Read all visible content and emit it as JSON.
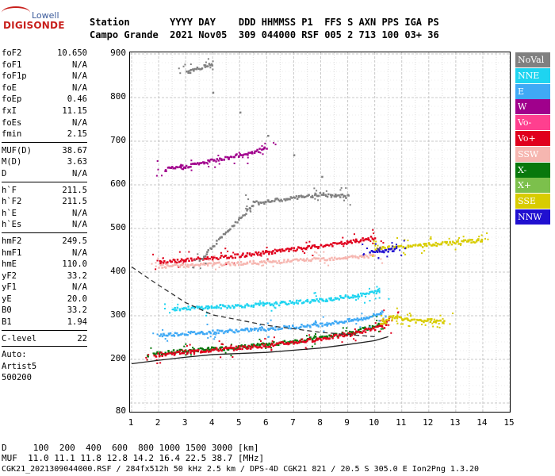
{
  "logo": {
    "top": "Lowell",
    "bottom": "DIGISONDE"
  },
  "header": {
    "line1": "Station       YYYY DAY    DDD HHMMSS P1  FFS S AXN PPS IGA PS",
    "line2": "Campo Grande  2021 Nov05  309 044000 RSF 005 2 713 100 03+ 36"
  },
  "params": {
    "group1": [
      {
        "name": "foF2",
        "value": "10.650"
      },
      {
        "name": "foF1",
        "value": "N/A"
      },
      {
        "name": "foF1p",
        "value": "N/A"
      },
      {
        "name": "foE",
        "value": "N/A"
      },
      {
        "name": "foEp",
        "value": "0.46"
      },
      {
        "name": "fxI",
        "value": "11.15"
      },
      {
        "name": "foEs",
        "value": "N/A"
      },
      {
        "name": "fmin",
        "value": "2.15"
      }
    ],
    "group2": [
      {
        "name": "MUF(D)",
        "value": "38.67"
      },
      {
        "name": "M(D)",
        "value": "3.63"
      },
      {
        "name": "D",
        "value": "N/A"
      }
    ],
    "group3": [
      {
        "name": "h`F",
        "value": "211.5"
      },
      {
        "name": "h`F2",
        "value": "211.5"
      },
      {
        "name": "h`E",
        "value": "N/A"
      },
      {
        "name": "h`Es",
        "value": "N/A"
      }
    ],
    "group4": [
      {
        "name": "hmF2",
        "value": "249.5"
      },
      {
        "name": "hmF1",
        "value": "N/A"
      },
      {
        "name": "hmE",
        "value": "110.0"
      },
      {
        "name": "yF2",
        "value": "33.2"
      },
      {
        "name": "yF1",
        "value": "N/A"
      },
      {
        "name": "yE",
        "value": "20.0"
      },
      {
        "name": "B0",
        "value": "33.2"
      },
      {
        "name": "B1",
        "value": "1.94"
      }
    ],
    "clevel": {
      "name": "C-level",
      "value": "22"
    },
    "auto": {
      "line1": "Auto:",
      "line2": "Artist5",
      "line3": "500200"
    }
  },
  "legend": [
    {
      "label": "NoVal",
      "bg": "#808080",
      "fg": "#ffffff"
    },
    {
      "label": "NNE",
      "bg": "#1ed4f0",
      "fg": "#ffffff"
    },
    {
      "label": "E",
      "bg": "#3fa9f5",
      "fg": "#ffffff"
    },
    {
      "label": "W",
      "bg": "#a0008c",
      "fg": "#ffffff"
    },
    {
      "label": "Vo-",
      "bg": "#ff3f8f",
      "fg": "#ffffff"
    },
    {
      "label": "Vo+",
      "bg": "#e0001c",
      "fg": "#ffffff"
    },
    {
      "label": "SSW",
      "bg": "#f6b6b0",
      "fg": "#ffffff"
    },
    {
      "label": "X-",
      "bg": "#08780c",
      "fg": "#ffffff"
    },
    {
      "label": "X+",
      "bg": "#7cc04c",
      "fg": "#ffffff"
    },
    {
      "label": "SSE",
      "bg": "#d8cc00",
      "fg": "#ffffff"
    },
    {
      "label": "NNW",
      "bg": "#2010d0",
      "fg": "#ffffff"
    }
  ],
  "chart_data": {
    "type": "scatter",
    "xlim": [
      1,
      15
    ],
    "ylim": [
      80,
      900
    ],
    "x_ticks": [
      "1",
      "2",
      "3",
      "4",
      "5",
      "6",
      "7",
      "8",
      "9",
      "10",
      "11",
      "12",
      "13",
      "14",
      "15"
    ],
    "y_ticks": [
      "80",
      "200",
      "300",
      "400",
      "500",
      "600",
      "700",
      "800",
      "900"
    ],
    "grid": true,
    "traces": [
      {
        "name": "X-",
        "color": "#08780c",
        "points": [
          [
            1.8,
            215
          ],
          [
            3,
            222
          ],
          [
            4.5,
            228
          ],
          [
            6,
            236
          ],
          [
            7.5,
            248
          ],
          [
            9,
            262
          ],
          [
            10.2,
            282
          ]
        ]
      },
      {
        "name": "Vo+",
        "color": "#e0001c",
        "points": [
          [
            1.8,
            212
          ],
          [
            3,
            219
          ],
          [
            4.5,
            226
          ],
          [
            6,
            234
          ],
          [
            7.5,
            245
          ],
          [
            9,
            259
          ],
          [
            10.3,
            278
          ],
          [
            10.6,
            300
          ]
        ]
      },
      {
        "name": "E",
        "color": "#3fa9f5",
        "points": [
          [
            2,
            258
          ],
          [
            4,
            265
          ],
          [
            6,
            272
          ],
          [
            8,
            282
          ],
          [
            9.5,
            295
          ],
          [
            10.3,
            310
          ]
        ]
      },
      {
        "name": "NNE",
        "color": "#1ed4f0",
        "points": [
          [
            2.5,
            318
          ],
          [
            4,
            322
          ],
          [
            6,
            328
          ],
          [
            8,
            338
          ],
          [
            9.5,
            350
          ],
          [
            10.2,
            360
          ]
        ]
      },
      {
        "name": "Vo+",
        "color": "#e0001c",
        "points": [
          [
            2,
            425
          ],
          [
            3,
            430
          ],
          [
            4.5,
            437
          ],
          [
            6,
            447
          ],
          [
            7.5,
            458
          ],
          [
            9,
            470
          ],
          [
            10,
            482
          ]
        ]
      },
      {
        "name": "SSW",
        "color": "#f6b6b0",
        "points": [
          [
            2,
            415
          ],
          [
            4,
            420
          ],
          [
            6,
            425
          ],
          [
            8,
            432
          ],
          [
            10,
            440
          ]
        ]
      },
      {
        "name": "W",
        "color": "#a0008c",
        "points": [
          [
            2.2,
            637
          ],
          [
            3,
            645
          ],
          [
            4,
            658
          ],
          [
            5,
            670
          ],
          [
            6,
            686
          ]
        ]
      },
      {
        "name": "SSE",
        "color": "#d8cc00",
        "points": [
          [
            10.2,
            285
          ],
          [
            10.6,
            300
          ],
          [
            11,
            295
          ],
          [
            11.5,
            290
          ],
          [
            12,
            292
          ],
          [
            12.6,
            288
          ]
        ]
      },
      {
        "name": "SSE",
        "color": "#d8cc00",
        "points": [
          [
            10,
            455
          ],
          [
            11,
            460
          ],
          [
            12,
            465
          ],
          [
            13,
            470
          ],
          [
            14,
            475
          ]
        ]
      },
      {
        "name": "NNW",
        "color": "#2010d0",
        "points": [
          [
            9.8,
            450
          ],
          [
            10.4,
            452
          ],
          [
            10.8,
            455
          ]
        ]
      },
      {
        "name": "NoVal",
        "color": "#808080",
        "points": [
          [
            3.5,
            430
          ],
          [
            5.5,
            560
          ],
          [
            8,
            580
          ],
          [
            9,
            575
          ],
          [
            3,
            860
          ],
          [
            4,
            880
          ]
        ]
      }
    ],
    "profile_solid": [
      [
        1,
        190
      ],
      [
        2,
        198
      ],
      [
        3,
        205
      ],
      [
        4,
        211
      ],
      [
        6,
        216
      ],
      [
        8,
        226
      ],
      [
        9,
        234
      ],
      [
        10,
        243
      ],
      [
        10.5,
        252
      ]
    ],
    "profile_dashed": [
      [
        1,
        412
      ],
      [
        2,
        370
      ],
      [
        3,
        330
      ],
      [
        4,
        302
      ],
      [
        6,
        278
      ],
      [
        8,
        262
      ],
      [
        10,
        252
      ]
    ]
  },
  "bottom": {
    "line1": "D     100  200  400  600  800 1000 1500 3000 [km]",
    "line2": "MUF  11.0 11.1 11.8 12.8 14.2 16.4 22.5 38.7 [MHz]",
    "line3": "CGK21_2021309044000.RSF / 284fx512h 50 kHz 2.5 km / DPS-4D CGK21 821 / 20.5 S 305.0 E Ion2Png 1.3.20"
  }
}
